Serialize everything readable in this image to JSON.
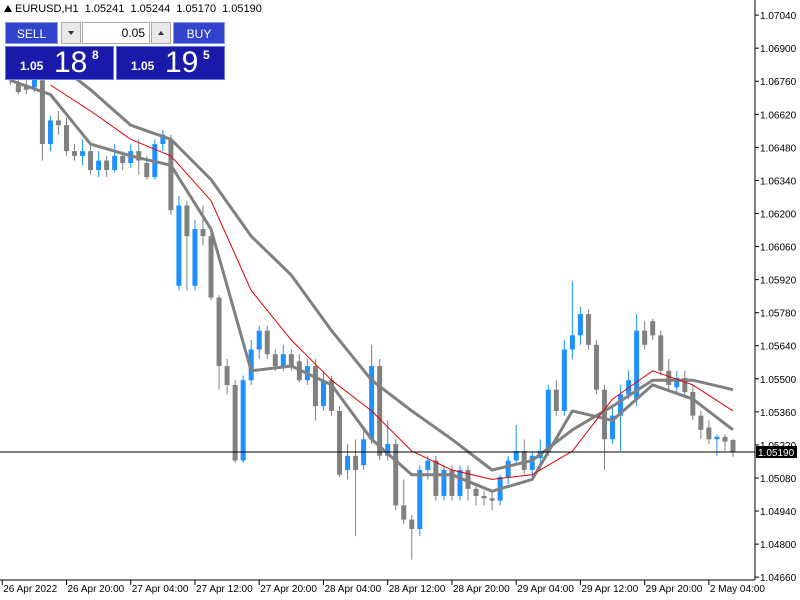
{
  "chart_data": {
    "type": "candlestick",
    "symbol": "EURUSD,H1",
    "header_values": [
      "1.05241",
      "1.05244",
      "1.05170",
      "1.05190"
    ],
    "up_color": "#1e90ff",
    "down_color": "#808080",
    "candles": {
      "open": [
        1.06804,
        1.06754,
        1.06744,
        1.06734,
        1.06764,
        1.06494,
        1.06594,
        1.06574,
        1.06464,
        1.06444,
        1.06464,
        1.06384,
        1.06424,
        1.06384,
        1.06444,
        1.06414,
        1.06464,
        1.06414,
        1.06354,
        1.06494,
        1.06514,
        1.05894,
        1.06234,
        1.05894,
        1.06134,
        1.06104,
        1.05844,
        1.05554,
        1.05474,
        1.05154,
        1.05494,
        1.05624,
        1.05704,
        1.05604,
        1.05554,
        1.05604,
        1.05574,
        1.05494,
        1.05554,
        1.05384,
        1.05494,
        1.05364,
        1.05114,
        1.05174,
        1.05134,
        1.05244,
        1.05554,
        1.05174,
        1.05224,
        1.04964,
        1.04904,
        1.04864,
        1.05114,
        1.05154,
        1.05004,
        1.05114,
        1.05004,
        1.05114,
        1.05034,
        1.05004,
        1.04994,
        1.04984,
        1.05084,
        1.05154,
        1.05194,
        1.05114,
        1.05164,
        1.05194,
        1.05454,
        1.05364,
        1.05624,
        1.05684,
        1.05774,
        1.05644,
        1.05454,
        1.05244,
        1.05344,
        1.05434,
        1.05414,
        1.05704,
        1.05744,
        1.05684,
        1.05534,
        1.05464,
        1.05504,
        1.05444,
        1.05344,
        1.05294,
        1.05244,
        1.05254,
        1.05241
      ],
      "high": [
        1.06854,
        1.06774,
        1.06764,
        1.06794,
        1.06784,
        1.06614,
        1.06634,
        1.06604,
        1.06494,
        1.06514,
        1.06494,
        1.06464,
        1.06444,
        1.06494,
        1.06464,
        1.06494,
        1.06514,
        1.06444,
        1.06514,
        1.06554,
        1.06534,
        1.06274,
        1.06254,
        1.06174,
        1.06234,
        1.06134,
        1.05854,
        1.05584,
        1.05494,
        1.05514,
        1.05664,
        1.05724,
        1.05724,
        1.05624,
        1.05644,
        1.05624,
        1.05604,
        1.05584,
        1.05584,
        1.05534,
        1.05514,
        1.05384,
        1.05224,
        1.05244,
        1.05284,
        1.05644,
        1.05584,
        1.05324,
        1.05244,
        1.05074,
        1.04924,
        1.05134,
        1.05174,
        1.05174,
        1.05134,
        1.05134,
        1.05134,
        1.05134,
        1.05054,
        1.05024,
        1.05024,
        1.05094,
        1.05174,
        1.05304,
        1.05244,
        1.05194,
        1.05244,
        1.05474,
        1.05494,
        1.05664,
        1.05914,
        1.05804,
        1.05794,
        1.05664,
        1.05474,
        1.05384,
        1.05474,
        1.05534,
        1.05774,
        1.05744,
        1.05754,
        1.05704,
        1.05584,
        1.05534,
        1.05534,
        1.05474,
        1.05364,
        1.05324,
        1.05264,
        1.05264,
        1.05244
      ],
      "low": [
        1.06744,
        1.06704,
        1.06704,
        1.06714,
        1.06424,
        1.06464,
        1.06534,
        1.06444,
        1.06424,
        1.06404,
        1.06364,
        1.06354,
        1.06354,
        1.06374,
        1.06384,
        1.06394,
        1.06364,
        1.06344,
        1.06344,
        1.06464,
        1.06194,
        1.05874,
        1.05874,
        1.05874,
        1.06064,
        1.05834,
        1.05454,
        1.05434,
        1.05144,
        1.05144,
        1.05474,
        1.05584,
        1.05584,
        1.05534,
        1.05534,
        1.05534,
        1.05484,
        1.05474,
        1.05324,
        1.05364,
        1.05344,
        1.05084,
        1.05074,
        1.04834,
        1.05114,
        1.05224,
        1.05154,
        1.05154,
        1.04944,
        1.04884,
        1.04734,
        1.04834,
        1.05074,
        1.04984,
        1.04984,
        1.04984,
        1.04984,
        1.04984,
        1.04964,
        1.04964,
        1.04944,
        1.04964,
        1.05054,
        1.05134,
        1.05094,
        1.05084,
        1.05114,
        1.05174,
        1.05344,
        1.05344,
        1.05584,
        1.05644,
        1.05624,
        1.05434,
        1.05114,
        1.05224,
        1.05194,
        1.05414,
        1.05384,
        1.05624,
        1.05664,
        1.05514,
        1.05454,
        1.05444,
        1.05434,
        1.05324,
        1.05244,
        1.05224,
        1.05174,
        1.05194,
        1.0517
      ],
      "close": [
        1.06764,
        1.06714,
        1.06724,
        1.06774,
        1.06494,
        1.06594,
        1.06574,
        1.06464,
        1.06444,
        1.06464,
        1.06384,
        1.06424,
        1.06384,
        1.06444,
        1.06414,
        1.06464,
        1.06424,
        1.06354,
        1.06494,
        1.06534,
        1.06214,
        1.06234,
        1.06104,
        1.06134,
        1.06104,
        1.05844,
        1.05554,
        1.05474,
        1.05154,
        1.05494,
        1.05624,
        1.05704,
        1.05604,
        1.05554,
        1.05604,
        1.05554,
        1.05494,
        1.05554,
        1.05384,
        1.05494,
        1.05364,
        1.05094,
        1.05174,
        1.05114,
        1.05244,
        1.05554,
        1.05174,
        1.05224,
        1.04964,
        1.04904,
        1.04864,
        1.05114,
        1.05154,
        1.05004,
        1.05114,
        1.05004,
        1.05114,
        1.05034,
        1.05004,
        1.04994,
        1.04984,
        1.05084,
        1.05154,
        1.05194,
        1.05114,
        1.05174,
        1.05194,
        1.05454,
        1.05364,
        1.05624,
        1.05684,
        1.05774,
        1.05644,
        1.05454,
        1.05244,
        1.05344,
        1.05434,
        1.05494,
        1.05704,
        1.05644,
        1.05684,
        1.05534,
        1.05474,
        1.05504,
        1.05444,
        1.05344,
        1.05284,
        1.05244,
        1.05254,
        1.05234,
        1.0519
      ]
    },
    "lines": {
      "x": [
        0,
        5,
        10,
        15,
        20,
        25,
        30,
        35,
        40,
        45,
        50,
        55,
        60,
        65,
        70,
        75,
        80,
        85,
        90
      ],
      "series": [
        {
          "color": "#808080",
          "width": 3,
          "values": [
            null,
            1.06854,
            1.06724,
            1.06574,
            1.06514,
            1.06344,
            1.06104,
            1.05939,
            1.05704,
            1.05494,
            1.05364,
            1.05244,
            1.05114,
            1.05154,
            1.05284,
            1.05384,
            1.05494,
            1.05494,
            1.05454
          ]
        },
        {
          "color": "#808080",
          "width": 3,
          "values": [
            1.06764,
            1.06704,
            1.06494,
            1.06444,
            1.06404,
            1.06134,
            1.05534,
            1.05554,
            1.05474,
            1.05244,
            1.05094,
            1.05094,
            1.05024,
            1.05074,
            1.05364,
            1.05324,
            1.05474,
            1.05414,
            1.05284
          ]
        },
        {
          "color": "#e00000",
          "width": 1,
          "values": [
            null,
            1.06744,
            1.06634,
            1.06514,
            1.06444,
            1.06254,
            1.05874,
            1.05664,
            1.05494,
            1.05364,
            1.05194,
            1.05114,
            1.05074,
            1.05094,
            1.05194,
            1.05414,
            1.05534,
            1.05474,
            1.05364
          ]
        }
      ]
    },
    "current_price": {
      "value": 1.0519,
      "label": "1.05190"
    },
    "xlim": [
      -1.28,
      92.74
    ],
    "xticks": [
      {
        "value": -1,
        "label": "26 Apr 2022"
      },
      {
        "value": 7,
        "label": "26 Apr 20:00"
      },
      {
        "value": 15,
        "label": "27 Apr 04:00"
      },
      {
        "value": 23,
        "label": "27 Apr 12:00"
      },
      {
        "value": 31,
        "label": "27 Apr 20:00"
      },
      {
        "value": 39,
        "label": "28 Apr 04:00"
      },
      {
        "value": 47,
        "label": "28 Apr 12:00"
      },
      {
        "value": 55,
        "label": "28 Apr 20:00"
      },
      {
        "value": 63,
        "label": "29 Apr 04:00"
      },
      {
        "value": 71,
        "label": "29 Apr 12:00"
      },
      {
        "value": 79,
        "label": "29 Apr 20:00"
      },
      {
        "value": 87,
        "label": "2 May 04:00"
      }
    ],
    "ylim": [
      1.04648,
      1.07104
    ],
    "yticks": [
      {
        "value": 1.0704,
        "label": "1.07040"
      },
      {
        "value": 1.069,
        "label": "1.06900"
      },
      {
        "value": 1.0676,
        "label": "1.06760"
      },
      {
        "value": 1.0662,
        "label": "1.06620"
      },
      {
        "value": 1.0648,
        "label": "1.06480"
      },
      {
        "value": 1.0634,
        "label": "1.06340"
      },
      {
        "value": 1.062,
        "label": "1.06200"
      },
      {
        "value": 1.0606,
        "label": "1.06060"
      },
      {
        "value": 1.0592,
        "label": "1.05920"
      },
      {
        "value": 1.0578,
        "label": "1.05780"
      },
      {
        "value": 1.0564,
        "label": "1.05640"
      },
      {
        "value": 1.055,
        "label": "1.05500"
      },
      {
        "value": 1.0536,
        "label": "1.05360"
      },
      {
        "value": 1.0522,
        "label": "1.05220"
      },
      {
        "value": 1.0508,
        "label": "1.05080"
      },
      {
        "value": 1.0494,
        "label": "1.04940"
      },
      {
        "value": 1.048,
        "label": "1.04800"
      },
      {
        "value": 1.0466,
        "label": "1.04660"
      }
    ]
  },
  "trade_panel": {
    "sell": "SELL",
    "buy": "BUY",
    "lot": "0.05",
    "sell_price": {
      "big": "1.05",
      "pips": "18",
      "point": "8"
    },
    "buy_price": {
      "big": "1.05",
      "pips": "19",
      "point": "5"
    }
  }
}
